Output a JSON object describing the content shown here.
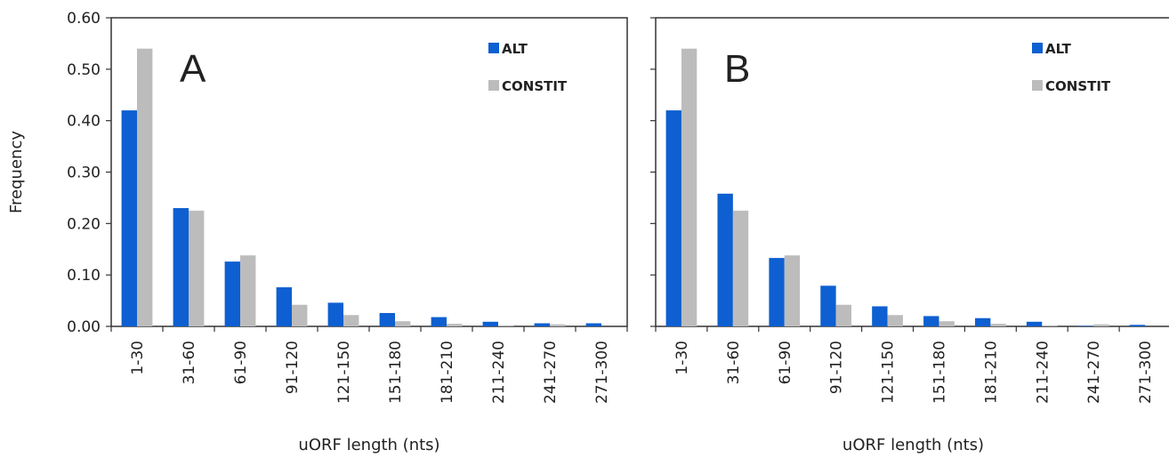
{
  "chart_data": [
    {
      "type": "bar",
      "panel_label": "A",
      "categories": [
        "1-30",
        "31-60",
        "61-90",
        "91-120",
        "121-150",
        "151-180",
        "181-210",
        "211-240",
        "241-270",
        "271-300"
      ],
      "series": [
        {
          "name": "ALT",
          "color": "#0e5fd1",
          "values": [
            0.42,
            0.23,
            0.126,
            0.076,
            0.046,
            0.026,
            0.018,
            0.009,
            0.006,
            0.006
          ]
        },
        {
          "name": "CONSTIT",
          "color": "#bcbcbc",
          "values": [
            0.54,
            0.225,
            0.138,
            0.042,
            0.022,
            0.01,
            0.005,
            0.001,
            0.004,
            0.0
          ]
        }
      ],
      "xlabel": "uORF length (nts)",
      "ylabel": "Frequency",
      "ylim": [
        0,
        0.6
      ],
      "yticks": [
        "0.00",
        "0.10",
        "0.20",
        "0.30",
        "0.40",
        "0.50",
        "0.60"
      ],
      "legend": "top-right",
      "grid": false
    },
    {
      "type": "bar",
      "panel_label": "B",
      "categories": [
        "1-30",
        "31-60",
        "61-90",
        "91-120",
        "121-150",
        "151-180",
        "181-210",
        "211-240",
        "241-270",
        "271-300"
      ],
      "series": [
        {
          "name": "ALT",
          "color": "#0e5fd1",
          "values": [
            0.42,
            0.258,
            0.133,
            0.079,
            0.039,
            0.02,
            0.016,
            0.009,
            0.001,
            0.003
          ]
        },
        {
          "name": "CONSTIT",
          "color": "#bcbcbc",
          "values": [
            0.54,
            0.225,
            0.138,
            0.042,
            0.022,
            0.01,
            0.005,
            0.001,
            0.004,
            0.0
          ]
        }
      ],
      "xlabel": "uORF length (nts)",
      "ylabel": "",
      "ylim": [
        0,
        0.6
      ],
      "yticks": [],
      "legend": "top-right",
      "grid": false
    }
  ]
}
